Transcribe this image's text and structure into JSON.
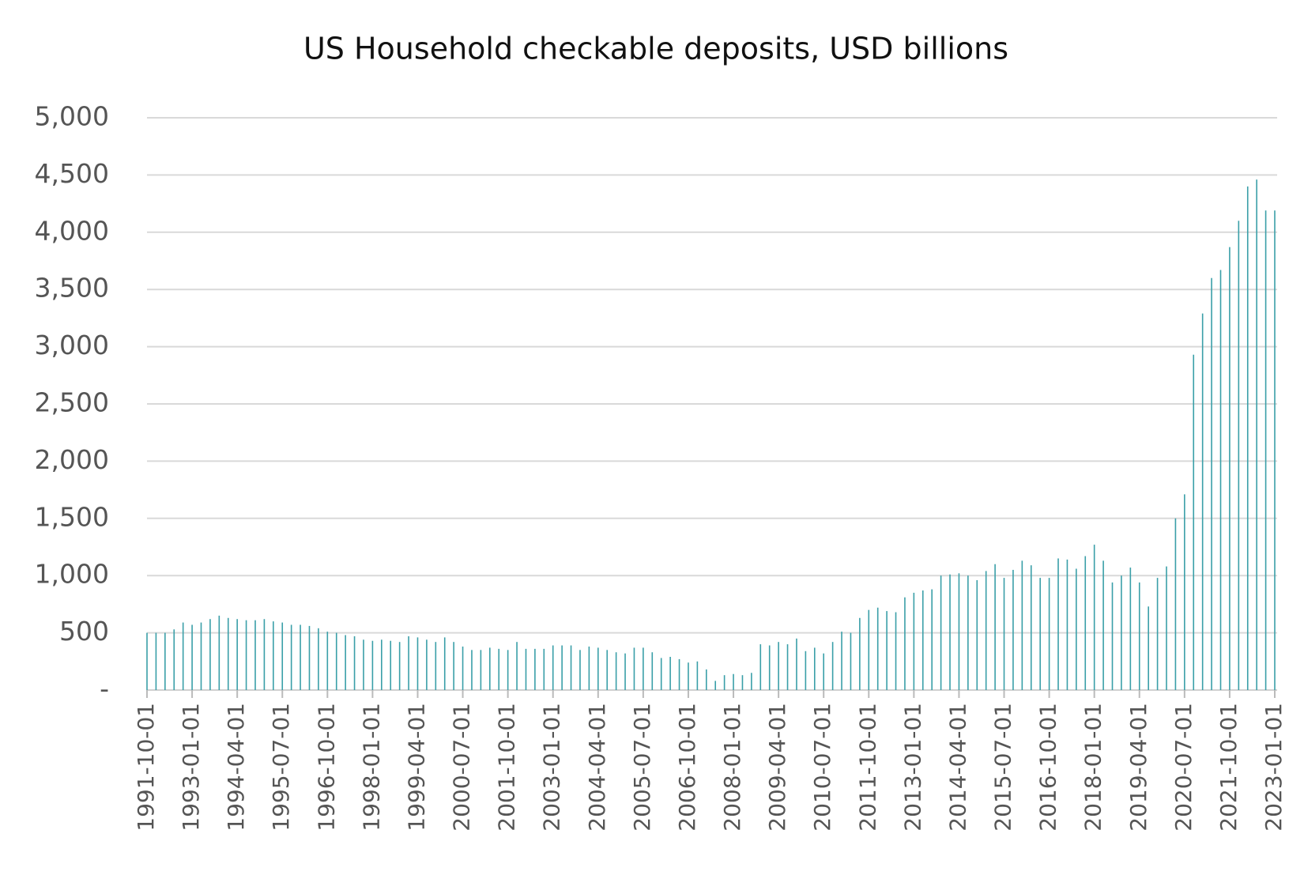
{
  "chart_data": {
    "type": "bar",
    "title": "US Household checkable deposits, USD billions",
    "categories": [
      "1991-10-01",
      null,
      null,
      null,
      null,
      "1993-01-01",
      null,
      null,
      null,
      null,
      "1994-04-01",
      null,
      null,
      null,
      null,
      "1995-07-01",
      null,
      null,
      null,
      null,
      "1996-10-01",
      null,
      null,
      null,
      null,
      "1998-01-01",
      null,
      null,
      null,
      null,
      "1999-04-01",
      null,
      null,
      null,
      null,
      "2000-07-01",
      null,
      null,
      null,
      null,
      "2001-10-01",
      null,
      null,
      null,
      null,
      "2003-01-01",
      null,
      null,
      null,
      null,
      "2004-04-01",
      null,
      null,
      null,
      null,
      "2005-07-01",
      null,
      null,
      null,
      null,
      "2006-10-01",
      null,
      null,
      null,
      null,
      "2008-01-01",
      null,
      null,
      null,
      null,
      "2009-04-01",
      null,
      null,
      null,
      null,
      "2010-07-01",
      null,
      null,
      null,
      null,
      "2011-10-01",
      null,
      null,
      null,
      null,
      "2013-01-01",
      null,
      null,
      null,
      null,
      "2014-04-01",
      null,
      null,
      null,
      null,
      "2015-07-01",
      null,
      null,
      null,
      null,
      "2016-10-01",
      null,
      null,
      null,
      null,
      "2018-01-01",
      null,
      null,
      null,
      null,
      "2019-04-01",
      null,
      null,
      null,
      null,
      "2020-07-01",
      null,
      null,
      null,
      null,
      "2021-10-01",
      null,
      null,
      null,
      null,
      "2023-01-01"
    ],
    "values": [
      500,
      500,
      500,
      530,
      590,
      570,
      590,
      620,
      650,
      630,
      620,
      610,
      610,
      620,
      600,
      590,
      570,
      570,
      560,
      540,
      510,
      500,
      480,
      470,
      440,
      430,
      440,
      430,
      420,
      470,
      460,
      440,
      420,
      460,
      420,
      380,
      350,
      350,
      370,
      360,
      350,
      420,
      360,
      360,
      360,
      390,
      390,
      390,
      350,
      380,
      370,
      350,
      330,
      320,
      370,
      370,
      330,
      280,
      290,
      270,
      240,
      250,
      180,
      80,
      130,
      140,
      130,
      150,
      400,
      390,
      420,
      400,
      450,
      340,
      370,
      320,
      420,
      510,
      500,
      630,
      700,
      720,
      690,
      680,
      810,
      850,
      870,
      880,
      1000,
      1010,
      1020,
      1000,
      960,
      1040,
      1100,
      980,
      1050,
      1130,
      1090,
      980,
      980,
      1150,
      1140,
      1060,
      1170,
      1270,
      1130,
      940,
      1000,
      1070,
      940,
      730,
      980,
      1080,
      1500,
      1710,
      2930,
      3290,
      3600,
      3670,
      3870,
      4100,
      4400,
      4460,
      4190,
      4190
    ],
    "color": "#3a9fa8",
    "ylim": [
      0,
      5000
    ],
    "yticks": [
      {
        "value": 0,
        "label": "-"
      },
      500,
      {
        "value": 1000,
        "label": "1,000"
      },
      {
        "value": 1500,
        "label": "1,500"
      },
      {
        "value": 2000,
        "label": "2,000"
      },
      {
        "value": 2500,
        "label": "2,500"
      },
      {
        "value": 3000,
        "label": "3,000"
      },
      {
        "value": 3500,
        "label": "3,500"
      },
      {
        "value": 4000,
        "label": "4,000"
      },
      {
        "value": 4500,
        "label": "4,500"
      },
      {
        "value": 5000,
        "label": "5,000"
      }
    ],
    "grid": true
  }
}
